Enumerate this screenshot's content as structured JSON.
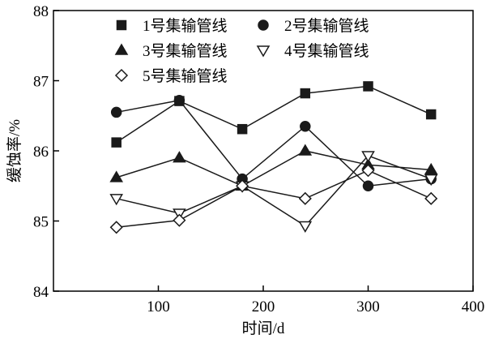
{
  "chart_data": {
    "type": "line",
    "title": "",
    "xlabel": "时间/d",
    "ylabel": "缓蚀率/%",
    "xlim": [
      0,
      400
    ],
    "ylim": [
      84,
      88
    ],
    "xticks": [
      100,
      200,
      300,
      400
    ],
    "yticks": [
      84,
      85,
      86,
      87,
      88
    ],
    "grid": false,
    "legend_position": "top-left",
    "x": [
      60,
      120,
      180,
      240,
      300,
      360
    ],
    "series": [
      {
        "name": "1号集输管线",
        "marker": "square-filled",
        "values": [
          86.12,
          86.71,
          86.31,
          86.82,
          86.92,
          86.52
        ]
      },
      {
        "name": "2号集输管线",
        "marker": "circle-filled",
        "values": [
          86.55,
          86.72,
          85.6,
          86.35,
          85.5,
          85.6
        ]
      },
      {
        "name": "3号集输管线",
        "marker": "triangle-up-filled",
        "values": [
          85.62,
          85.9,
          85.5,
          86.0,
          85.8,
          85.73
        ]
      },
      {
        "name": "4号集输管线",
        "marker": "triangle-down-open",
        "values": [
          85.32,
          85.11,
          85.5,
          84.93,
          85.93,
          85.6
        ]
      },
      {
        "name": "5号集输管线",
        "marker": "diamond-open",
        "values": [
          84.91,
          85.01,
          85.5,
          85.32,
          85.72,
          85.32
        ]
      }
    ],
    "line_color": "#1a1a1a"
  }
}
